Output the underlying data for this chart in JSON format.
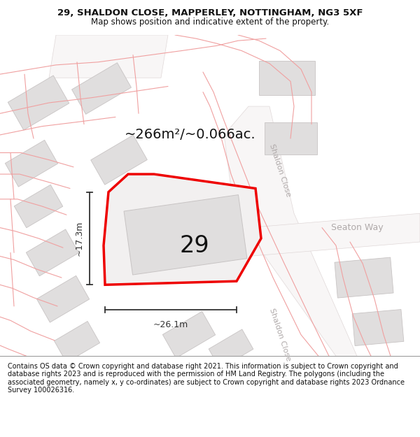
{
  "title_line1": "29, SHALDON CLOSE, MAPPERLEY, NOTTINGHAM, NG3 5XF",
  "title_line2": "Map shows position and indicative extent of the property.",
  "footer_text": "Contains OS data © Crown copyright and database right 2021. This information is subject to Crown copyright and database rights 2023 and is reproduced with the permission of HM Land Registry. The polygons (including the associated geometry, namely x, y co-ordinates) are subject to Crown copyright and database rights 2023 Ordnance Survey 100026316.",
  "area_label": "~266m²/~0.066ac.",
  "number_label": "29",
  "width_label": "~26.1m",
  "height_label": "~17.3m",
  "map_bg": "#ffffff",
  "plot_outline_red": "#ee0000",
  "plot_fill": "#f0eeee",
  "building_fill": "#e0dede",
  "building_edge": "#c8c4c4",
  "boundary_red": "#f0a0a0",
  "road_label_color": "#b0aaaa",
  "dim_color": "#333333",
  "number_color": "#111111",
  "area_label_color": "#111111",
  "title_color": "#111111",
  "footer_bg": "#ffffff",
  "title_fontsize": 9.5,
  "subtitle_fontsize": 8.5,
  "footer_fontsize": 7.0,
  "area_fontsize": 14,
  "number_fontsize": 24,
  "road_label_fontsize": 8,
  "dim_fontsize": 9
}
